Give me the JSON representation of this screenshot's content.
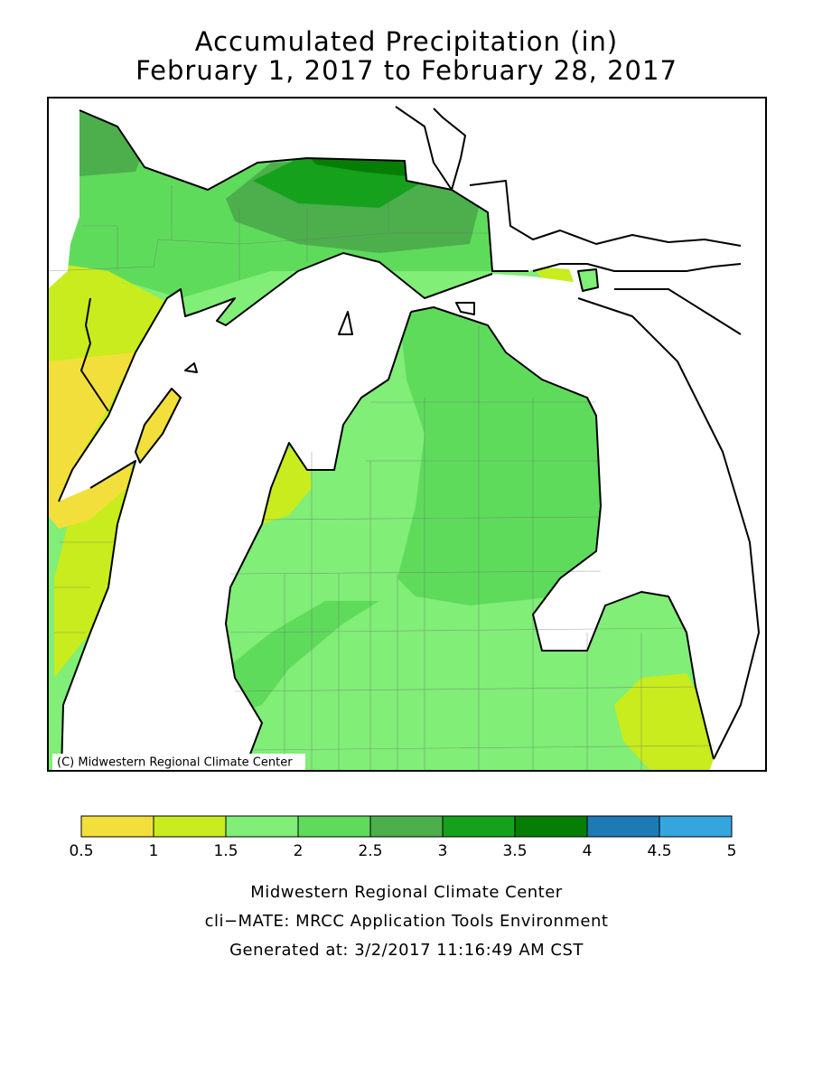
{
  "title": "Accumulated Precipitation (in)",
  "subtitle": "February 1, 2017 to February 28, 2017",
  "map": {
    "copyright": "(C) Midwestern Regional Climate Center"
  },
  "legend": {
    "ticks": [
      0.5,
      1,
      1.5,
      2,
      2.5,
      3,
      3.5,
      4,
      4.5,
      5
    ],
    "colors": [
      "#f3df3b",
      "#c8ec1e",
      "#80ee77",
      "#5fdb5c",
      "#4caf4c",
      "#16a11c",
      "#067e06",
      "#1d7ab5",
      "#35a5de"
    ]
  },
  "footer": {
    "lines": [
      "Midwestern Regional Climate Center",
      "cli−MATE: MRCC Application Tools Environment",
      "Generated at: 3/2/2017 11:16:49 AM CST"
    ]
  }
}
